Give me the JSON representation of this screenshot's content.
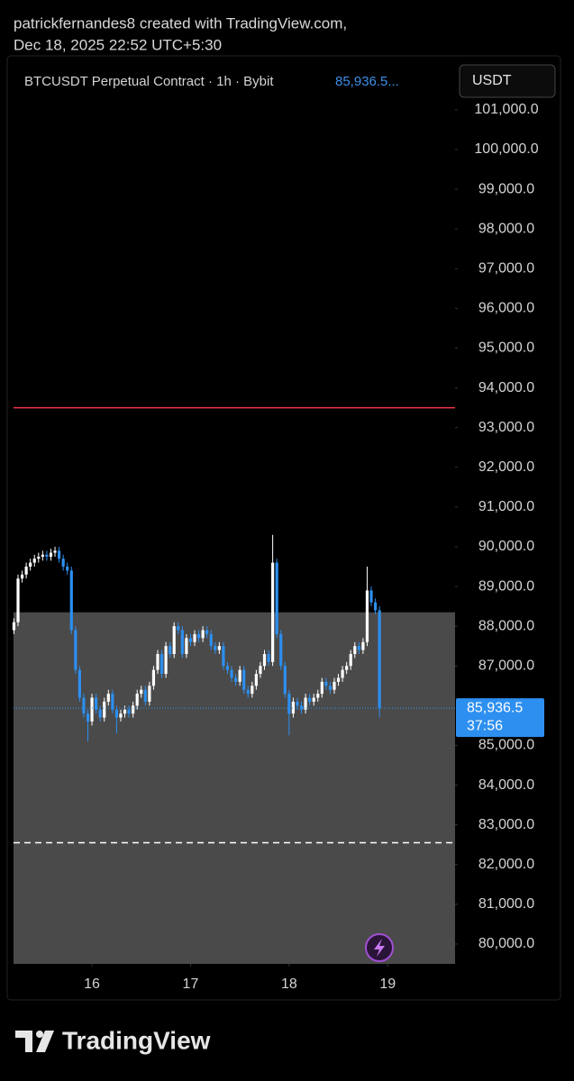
{
  "header": {
    "line1": "patrickfernandes8 created with TradingView.com,",
    "line2": "Dec 18, 2025 22:52 UTC+5:30"
  },
  "chart_data": {
    "type": "candlestick",
    "title": "BTCUSDT Perpetual Contract · 1h · Bybit",
    "last_price_header": "85,936.5...",
    "currency_button": "USDT",
    "up_color": "#ffffff",
    "down_color": "#2d8ff0",
    "open": [
      87900,
      88100,
      89200,
      89300,
      89500,
      89600,
      89700,
      89750,
      89800,
      89750,
      89850,
      89900,
      89700,
      89500,
      89400,
      87900,
      86900,
      86200,
      85800,
      85600,
      86200,
      85900,
      85700,
      86100,
      86300,
      85900,
      85700,
      85800,
      85900,
      85800,
      86000,
      86300,
      86400,
      86100,
      86500,
      86900,
      87300,
      86800,
      87500,
      87300,
      88000,
      87900,
      87300,
      87700,
      87600,
      87800,
      87700,
      87900,
      87800,
      87500,
      87400,
      87500,
      87000,
      86900,
      86700,
      86600,
      86900,
      86400,
      86300,
      86500,
      86800,
      87000,
      87300,
      87100,
      89600,
      87800,
      87000,
      86300,
      85800,
      86100,
      86000,
      85900,
      86200,
      86100,
      86200,
      86300,
      86600,
      86500,
      86400,
      86600,
      86700,
      86900,
      87000,
      87300,
      87500,
      87400,
      87600,
      88900,
      88600,
      88400
    ],
    "high": [
      88200,
      89300,
      89400,
      89600,
      89700,
      89800,
      89850,
      89900,
      89900,
      89950,
      90000,
      90000,
      89800,
      89600,
      89500,
      88000,
      87000,
      86300,
      85900,
      86300,
      86300,
      86000,
      86200,
      86400,
      86400,
      86000,
      85900,
      86000,
      86000,
      86100,
      86400,
      86500,
      86500,
      86600,
      87000,
      87400,
      87400,
      87600,
      87600,
      88100,
      88100,
      88000,
      87800,
      87800,
      87900,
      87900,
      88000,
      88000,
      87900,
      87600,
      87600,
      87600,
      87100,
      87000,
      86800,
      87000,
      87000,
      86500,
      86600,
      86900,
      87100,
      87400,
      87400,
      90300,
      89700,
      87900,
      87100,
      86400,
      86200,
      86200,
      86100,
      86300,
      86300,
      86300,
      86400,
      86700,
      86700,
      86600,
      86700,
      86800,
      87000,
      87100,
      87400,
      87600,
      87600,
      87700,
      89500,
      89000,
      88700,
      88500
    ],
    "low": [
      87800,
      88000,
      89100,
      89200,
      89400,
      89500,
      89600,
      89650,
      89650,
      89650,
      89750,
      89600,
      89400,
      89300,
      87800,
      86800,
      86100,
      85700,
      85100,
      85500,
      85800,
      85600,
      85600,
      86000,
      85800,
      85300,
      85600,
      85700,
      85700,
      85700,
      85900,
      86200,
      86000,
      86000,
      86400,
      86800,
      86700,
      86700,
      87200,
      87200,
      87800,
      87200,
      87200,
      87500,
      87500,
      87600,
      87600,
      87700,
      87400,
      87300,
      87300,
      86900,
      86800,
      86600,
      86500,
      86500,
      86300,
      86200,
      86200,
      86400,
      86700,
      86900,
      87000,
      87000,
      87700,
      86900,
      86200,
      85250,
      85700,
      85900,
      85800,
      85800,
      86000,
      86000,
      86100,
      86200,
      86400,
      86300,
      86300,
      86500,
      86600,
      86800,
      86900,
      87200,
      87300,
      87300,
      87500,
      88500,
      88300,
      85700
    ],
    "close": [
      88100,
      89200,
      89300,
      89500,
      89600,
      89700,
      89750,
      89800,
      89750,
      89850,
      89900,
      89700,
      89500,
      89400,
      87900,
      86900,
      86200,
      85800,
      85600,
      86200,
      85900,
      85700,
      86100,
      86300,
      85900,
      85700,
      85800,
      85900,
      85800,
      86000,
      86300,
      86400,
      86100,
      86500,
      86900,
      87300,
      86800,
      87500,
      87300,
      88000,
      87900,
      87300,
      87700,
      87600,
      87800,
      87700,
      87900,
      87800,
      87500,
      87400,
      87500,
      87000,
      86900,
      86700,
      86600,
      86900,
      86400,
      86300,
      86500,
      86800,
      87000,
      87300,
      87100,
      89600,
      87800,
      87000,
      86300,
      85800,
      86100,
      86000,
      85900,
      86200,
      86100,
      86200,
      86300,
      86600,
      86500,
      86400,
      86600,
      86700,
      86900,
      87000,
      87300,
      87500,
      87400,
      87600,
      88900,
      88600,
      88400,
      85936.5
    ],
    "last_price_label": "85,936.5",
    "countdown": "37:56",
    "xlim": [
      -0.1,
      107.4
    ],
    "xticks": [
      {
        "value": 19,
        "label": "16"
      },
      {
        "value": 43,
        "label": "17"
      },
      {
        "value": 67,
        "label": "18"
      },
      {
        "value": 91,
        "label": "19"
      }
    ],
    "ylim": [
      79500,
      102130
    ],
    "yticks": [
      {
        "value": 80000,
        "label": "80,000.0"
      },
      {
        "value": 81000,
        "label": "81,000.0"
      },
      {
        "value": 82000,
        "label": "82,000.0"
      },
      {
        "value": 83000,
        "label": "83,000.0"
      },
      {
        "value": 84000,
        "label": "84,000.0"
      },
      {
        "value": 85000,
        "label": "85,000.0"
      },
      {
        "value": 87000,
        "label": "87,000.0"
      },
      {
        "value": 88000,
        "label": "88,000.0"
      },
      {
        "value": 89000,
        "label": "89,000.0"
      },
      {
        "value": 90000,
        "label": "90,000.0"
      },
      {
        "value": 91000,
        "label": "91,000.0"
      },
      {
        "value": 92000,
        "label": "92,000.0"
      },
      {
        "value": 93000,
        "label": "93,000.0"
      },
      {
        "value": 94000,
        "label": "94,000.0"
      },
      {
        "value": 95000,
        "label": "95,000.0"
      },
      {
        "value": 96000,
        "label": "96,000.0"
      },
      {
        "value": 97000,
        "label": "97,000.0"
      },
      {
        "value": 98000,
        "label": "98,000.0"
      },
      {
        "value": 99000,
        "label": "99,000.0"
      },
      {
        "value": 100000,
        "label": "100,000.0"
      },
      {
        "value": 101000,
        "label": "101,000.0"
      }
    ],
    "zone": {
      "from": 88350,
      "to": 79500,
      "color": "#4a4a4a"
    },
    "hlines": [
      {
        "value": 93500,
        "color": "#f23645",
        "dashed": false
      },
      {
        "value": 82550,
        "color": "#ffffff",
        "dashed": true
      }
    ]
  },
  "footer": {
    "brand": "TradingView"
  }
}
